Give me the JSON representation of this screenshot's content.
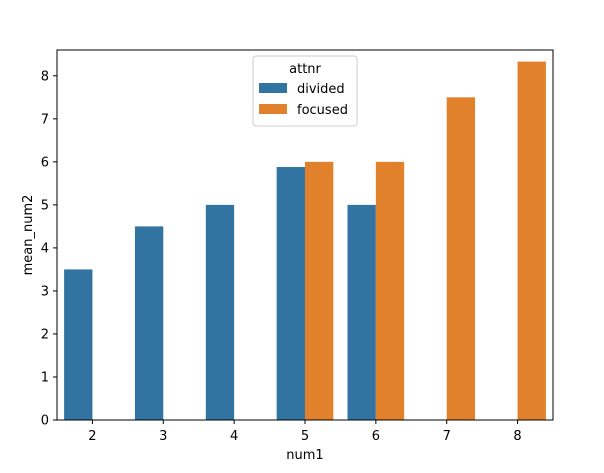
{
  "chart_data": {
    "type": "bar",
    "categories": [
      "2",
      "3",
      "4",
      "5",
      "6",
      "7",
      "8"
    ],
    "series": [
      {
        "name": "divided",
        "color": "#3274a1",
        "values": [
          3.5,
          4.5,
          5.0,
          5.88,
          5.0,
          null,
          null
        ]
      },
      {
        "name": "focused",
        "color": "#e1812c",
        "values": [
          null,
          null,
          null,
          6.0,
          6.0,
          7.5,
          8.33
        ]
      }
    ],
    "title": "",
    "xlabel": "num1",
    "ylabel": "mean_num2",
    "ylim": [
      0,
      8.6
    ],
    "yticks": [
      0,
      1,
      2,
      3,
      4,
      5,
      6,
      7,
      8
    ],
    "grid": false,
    "legend": {
      "title": "attnr",
      "placement": "top-center"
    }
  }
}
